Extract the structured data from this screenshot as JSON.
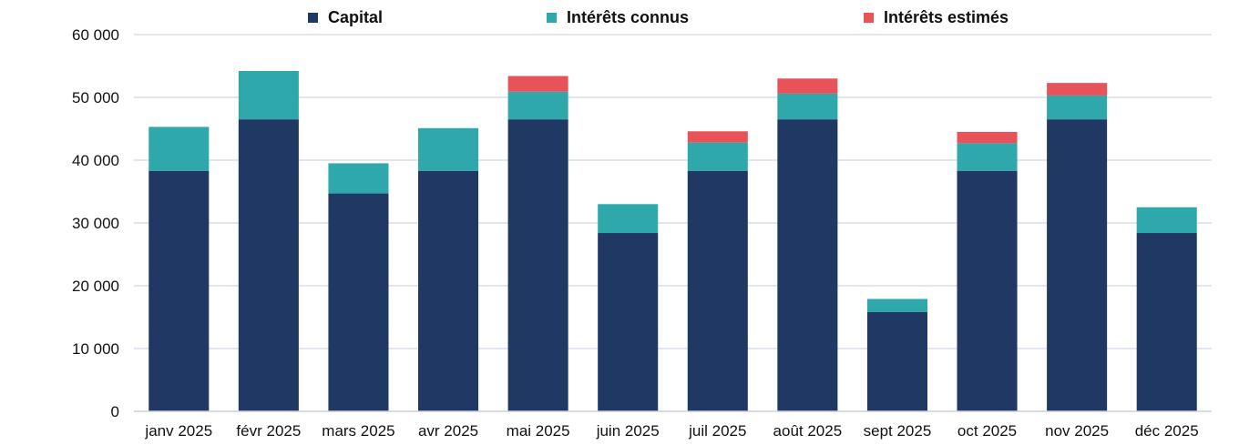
{
  "chart_data": {
    "type": "bar",
    "stacked": true,
    "categories": [
      "janv 2025",
      "févr 2025",
      "mars 2025",
      "avr 2025",
      "mai 2025",
      "juin 2025",
      "juil 2025",
      "août 2025",
      "sept 2025",
      "oct 2025",
      "nov 2025",
      "déc 2025"
    ],
    "series": [
      {
        "name": "Capital",
        "color": "#1F3864",
        "values": [
          38300,
          46500,
          34700,
          38300,
          46500,
          28400,
          38300,
          46500,
          15800,
          38300,
          46500,
          28400
        ]
      },
      {
        "name": "Intérêts connus",
        "color": "#2EA8AB",
        "values": [
          7000,
          7700,
          4800,
          6800,
          4400,
          4600,
          4500,
          4100,
          2100,
          4400,
          3800,
          4100
        ]
      },
      {
        "name": "Intérêts estimés",
        "color": "#E8535A",
        "values": [
          0,
          0,
          0,
          0,
          2500,
          0,
          1800,
          2400,
          0,
          1800,
          2000,
          0
        ]
      }
    ],
    "ylim": [
      0,
      60000
    ],
    "yticks": [
      0,
      10000,
      20000,
      30000,
      40000,
      50000,
      60000
    ],
    "ytick_labels": [
      "0",
      "10 000",
      "20 000",
      "30 000",
      "40 000",
      "50 000",
      "60 000"
    ],
    "grid": true,
    "legend_position": "top-center",
    "title": "",
    "xlabel": "",
    "ylabel": ""
  }
}
